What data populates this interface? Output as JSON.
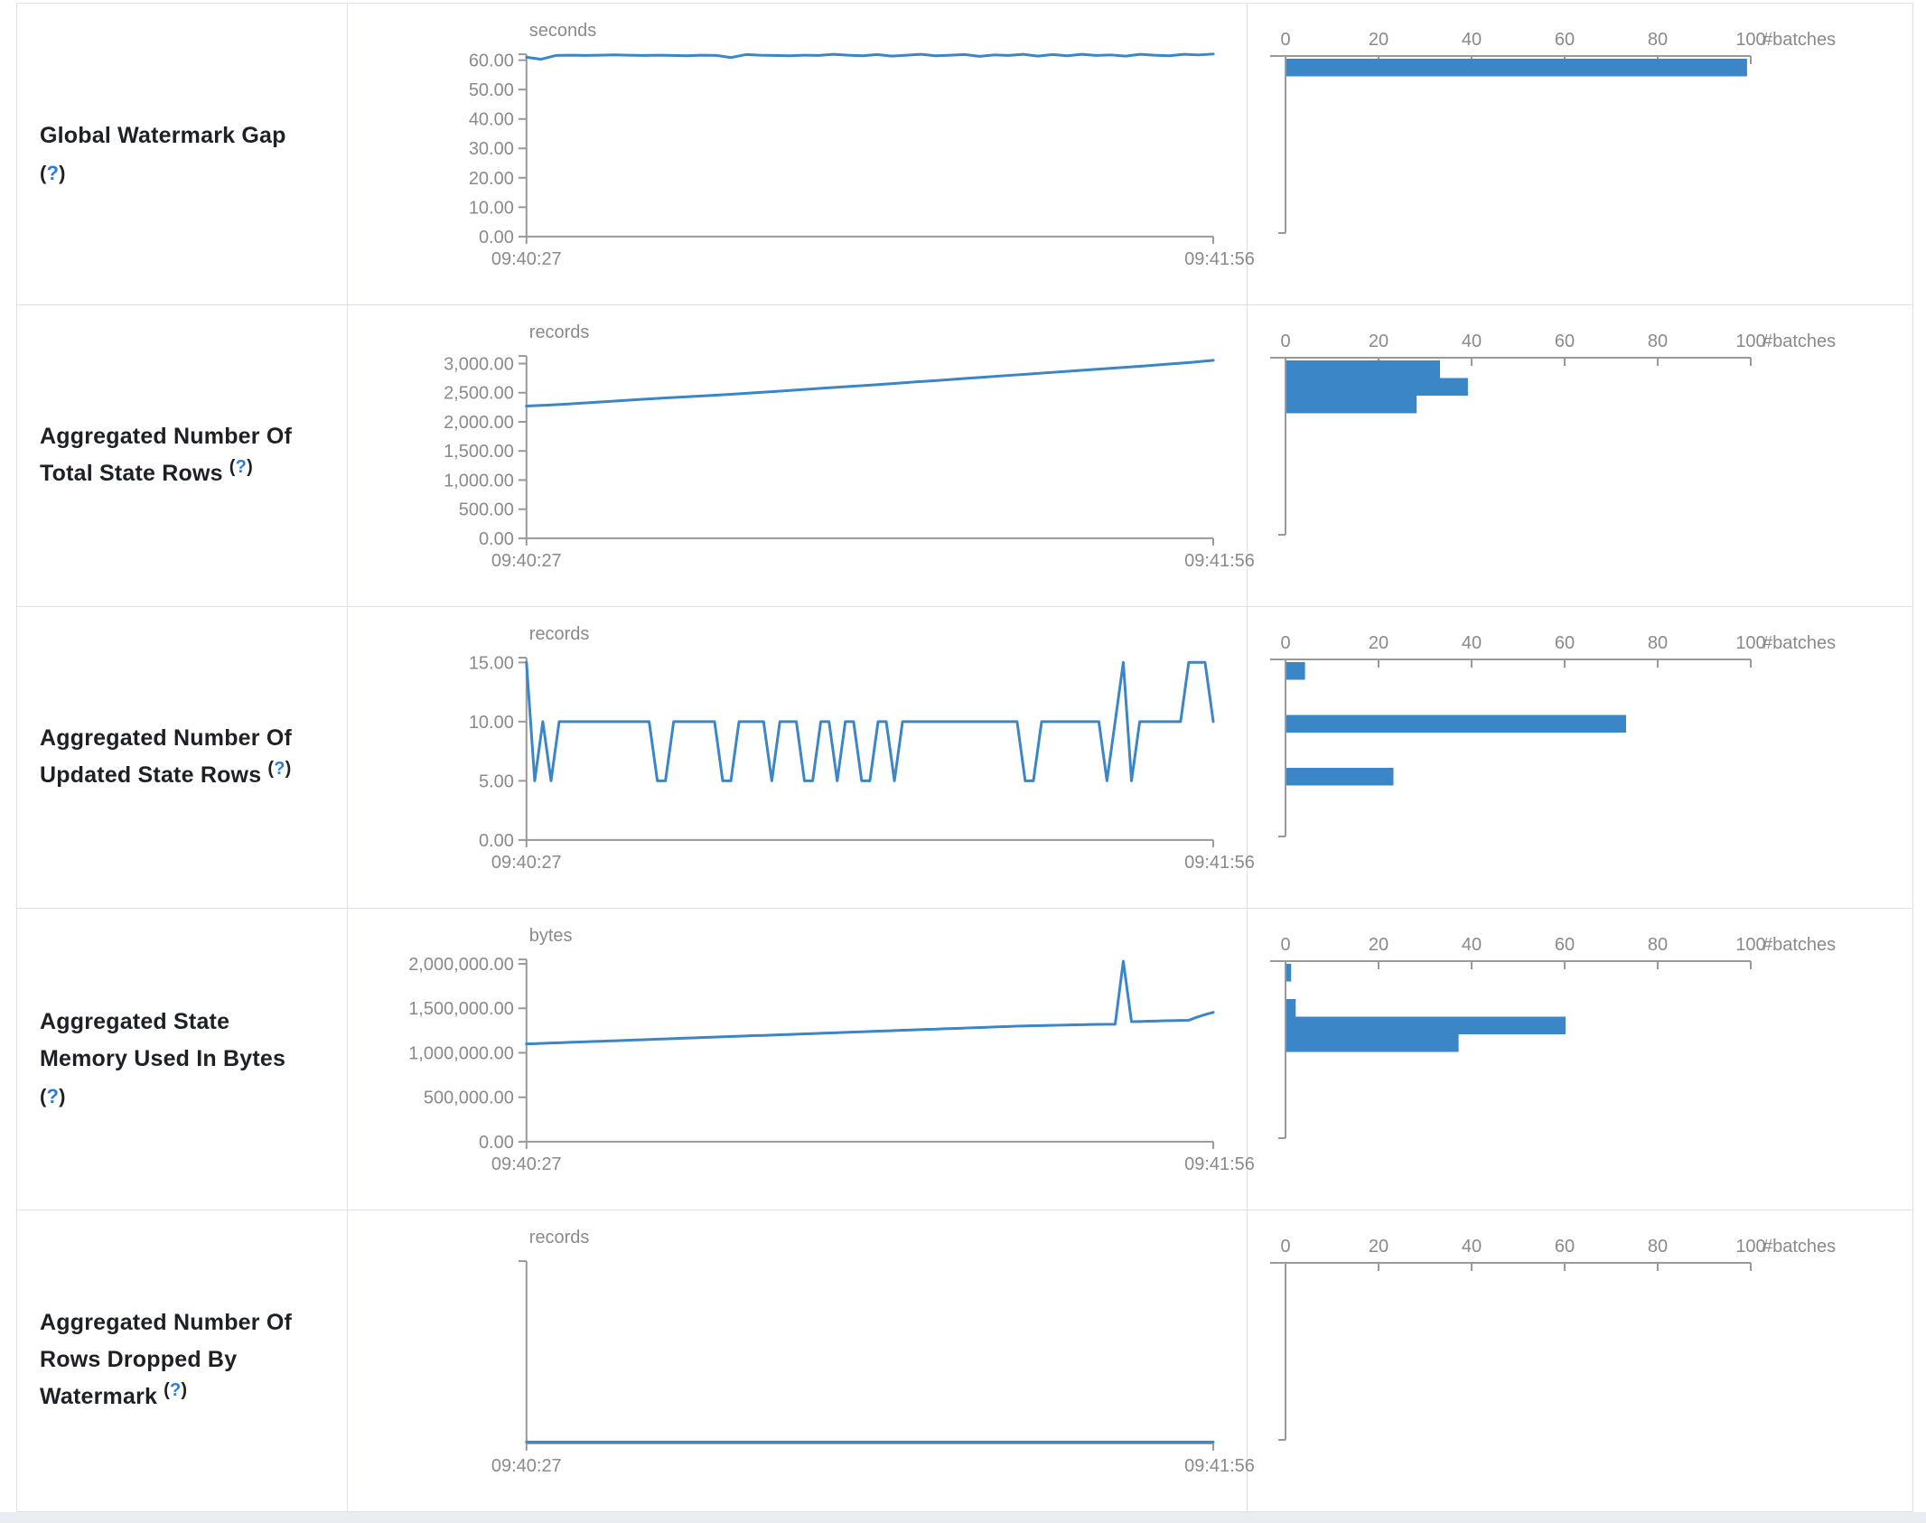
{
  "colors": {
    "accent_blue": "#3b86c7",
    "axis_gray": "#999999",
    "chart_text_gray": "#8a8a8a",
    "label_text": "#1d2126",
    "help_blue": "#2c7cd5",
    "table_border": "#dee2e6",
    "footer_strip": "#e9edf2"
  },
  "rows": [
    {
      "label": {
        "lines": [
          "Global Watermark Gap"
        ],
        "help_open": "(",
        "help_q": "?",
        "help_close": ")",
        "help_inline": false
      },
      "timeline": {
        "type": "line",
        "unit": "seconds",
        "x_start_label": "09:40:27",
        "x_end_label": "09:41:56",
        "y_tick_labels": [
          "60.00",
          "50.00",
          "40.00",
          "30.00",
          "20.00",
          "10.00",
          "0.00"
        ],
        "y_tick_values": [
          60,
          50,
          40,
          30,
          20,
          10,
          0
        ],
        "y_axis_max": 62,
        "values": [
          61.0,
          60.3,
          61.6,
          61.7,
          61.6,
          61.7,
          61.8,
          61.7,
          61.6,
          61.7,
          61.6,
          61.5,
          61.7,
          61.6,
          60.9,
          61.9,
          61.7,
          61.6,
          61.5,
          61.7,
          61.6,
          62.0,
          61.7,
          61.5,
          61.9,
          61.4,
          61.7,
          62.0,
          61.5,
          61.7,
          61.9,
          61.3,
          61.8,
          61.6,
          62.0,
          61.4,
          61.9,
          61.5,
          62.0,
          61.6,
          61.8,
          61.4,
          62.0,
          61.7,
          61.5,
          62.0,
          61.8,
          62.1
        ]
      },
      "histogram": {
        "type": "bar",
        "axis_label": "#batches",
        "tick_labels": [
          "0",
          "20",
          "40",
          "60",
          "80",
          "100"
        ],
        "tick_values": [
          0,
          20,
          40,
          60,
          80,
          100
        ],
        "max": 100,
        "bars": [
          {
            "slot": 0,
            "value": 99
          }
        ]
      }
    },
    {
      "label": {
        "lines": [
          "Aggregated Number Of",
          "Total State Rows"
        ],
        "help_open": "(",
        "help_q": "?",
        "help_close": ")",
        "help_inline": true
      },
      "timeline": {
        "type": "line",
        "unit": "records",
        "x_start_label": "09:40:27",
        "x_end_label": "09:41:56",
        "y_tick_labels": [
          "3,000.00",
          "2,500.00",
          "2,000.00",
          "1,500.00",
          "1,000.00",
          "500.00",
          "0.00"
        ],
        "y_tick_values": [
          3000,
          2500,
          2000,
          1500,
          1000,
          500,
          0
        ],
        "y_axis_max": 3130,
        "values": [
          2270,
          2288,
          2310,
          2335,
          2360,
          2385,
          2408,
          2430,
          2452,
          2475,
          2500,
          2525,
          2552,
          2580,
          2605,
          2630,
          2658,
          2685,
          2712,
          2740,
          2768,
          2795,
          2822,
          2850,
          2878,
          2905,
          2932,
          2960,
          2990,
          3020,
          3055
        ]
      },
      "histogram": {
        "type": "bar",
        "axis_label": "#batches",
        "tick_labels": [
          "0",
          "20",
          "40",
          "60",
          "80",
          "100"
        ],
        "tick_values": [
          0,
          20,
          40,
          60,
          80,
          100
        ],
        "max": 100,
        "bars": [
          {
            "slot": 0,
            "value": 33
          },
          {
            "slot": 1,
            "value": 39
          },
          {
            "slot": 2,
            "value": 28
          }
        ]
      }
    },
    {
      "label": {
        "lines": [
          "Aggregated Number Of",
          "Updated State Rows"
        ],
        "help_open": "(",
        "help_q": "?",
        "help_close": ")",
        "help_inline": true
      },
      "timeline": {
        "type": "line",
        "unit": "records",
        "x_start_label": "09:40:27",
        "x_end_label": "09:41:56",
        "y_tick_labels": [
          "15.00",
          "10.00",
          "5.00",
          "0.00"
        ],
        "y_tick_values": [
          15,
          10,
          5,
          0
        ],
        "y_axis_max": 15.4,
        "values": [
          15,
          5,
          10,
          5,
          10,
          10,
          10,
          10,
          10,
          10,
          10,
          10,
          10,
          10,
          10,
          10,
          5,
          5,
          10,
          10,
          10,
          10,
          10,
          10,
          5,
          5,
          10,
          10,
          10,
          10,
          5,
          10,
          10,
          10,
          5,
          5,
          10,
          10,
          5,
          10,
          10,
          5,
          5,
          10,
          10,
          5,
          10,
          10,
          10,
          10,
          10,
          10,
          10,
          10,
          10,
          10,
          10,
          10,
          10,
          10,
          10,
          5,
          5,
          10,
          10,
          10,
          10,
          10,
          10,
          10,
          10,
          5,
          10,
          15,
          5,
          10,
          10,
          10,
          10,
          10,
          10,
          15,
          15,
          15,
          10
        ]
      },
      "histogram": {
        "type": "bar",
        "axis_label": "#batches",
        "tick_labels": [
          "0",
          "20",
          "40",
          "60",
          "80",
          "100"
        ],
        "tick_values": [
          0,
          20,
          40,
          60,
          80,
          100
        ],
        "max": 100,
        "bars": [
          {
            "slot": 0,
            "value": 4
          },
          {
            "slot": 3,
            "value": 73
          },
          {
            "slot": 6,
            "value": 23
          }
        ]
      }
    },
    {
      "label": {
        "lines": [
          "Aggregated State",
          "Memory Used In Bytes"
        ],
        "help_open": "(",
        "help_q": "?",
        "help_close": ")",
        "help_inline": false
      },
      "timeline": {
        "type": "line",
        "unit": "bytes",
        "x_start_label": "09:40:27",
        "x_end_label": "09:41:56",
        "y_tick_labels": [
          "2,000,000.00",
          "1,500,000.00",
          "1,000,000.00",
          "500,000.00",
          "0.00"
        ],
        "y_tick_values": [
          2000000,
          1500000,
          1000000,
          500000,
          0
        ],
        "y_axis_max": 2050000,
        "values": [
          1100000,
          1103000,
          1106000,
          1110000,
          1113000,
          1116000,
          1120000,
          1123000,
          1126000,
          1130000,
          1133000,
          1136000,
          1140000,
          1143000,
          1146000,
          1150000,
          1153000,
          1156000,
          1160000,
          1163000,
          1166000,
          1170000,
          1173000,
          1176000,
          1180000,
          1183000,
          1186000,
          1190000,
          1193000,
          1196000,
          1200000,
          1203000,
          1206000,
          1210000,
          1213000,
          1216000,
          1220000,
          1223000,
          1226000,
          1230000,
          1233000,
          1236000,
          1240000,
          1243000,
          1246000,
          1250000,
          1253000,
          1256000,
          1260000,
          1263000,
          1266000,
          1270000,
          1273000,
          1276000,
          1280000,
          1283000,
          1286000,
          1290000,
          1293000,
          1296000,
          1300000,
          1302000,
          1304000,
          1306000,
          1308000,
          1310000,
          1312000,
          1314000,
          1316000,
          1318000,
          1319000,
          1320000,
          1321000,
          2030000,
          1350000,
          1352000,
          1355000,
          1357000,
          1360000,
          1362000,
          1364000,
          1366000,
          1400000,
          1430000,
          1455000
        ]
      },
      "histogram": {
        "type": "bar",
        "axis_label": "#batches",
        "tick_labels": [
          "0",
          "20",
          "40",
          "60",
          "80",
          "100"
        ],
        "tick_values": [
          0,
          20,
          40,
          60,
          80,
          100
        ],
        "max": 100,
        "bars": [
          {
            "slot": 0,
            "value": 1
          },
          {
            "slot": 2,
            "value": 2
          },
          {
            "slot": 3,
            "value": 60
          },
          {
            "slot": 4,
            "value": 37
          }
        ]
      }
    },
    {
      "label": {
        "lines": [
          "Aggregated Number Of",
          "Rows Dropped By",
          "Watermark"
        ],
        "help_open": "(",
        "help_q": "?",
        "help_close": ")",
        "help_inline": true
      },
      "timeline": {
        "type": "line",
        "unit": "records",
        "x_start_label": "09:40:27",
        "x_end_label": "09:41:56",
        "y_tick_labels": [],
        "y_tick_values": [],
        "y_axis_max": null,
        "values": [
          0,
          0,
          0,
          0,
          0,
          0,
          0,
          0,
          0,
          0,
          0,
          0,
          0,
          0,
          0,
          0,
          0,
          0,
          0,
          0,
          0,
          0,
          0,
          0,
          0,
          0,
          0,
          0,
          0,
          0
        ]
      },
      "histogram": {
        "type": "bar",
        "axis_label": "#batches",
        "tick_labels": [
          "0",
          "20",
          "40",
          "60",
          "80",
          "100"
        ],
        "tick_values": [
          0,
          20,
          40,
          60,
          80,
          100
        ],
        "max": 100,
        "bars": []
      }
    }
  ]
}
